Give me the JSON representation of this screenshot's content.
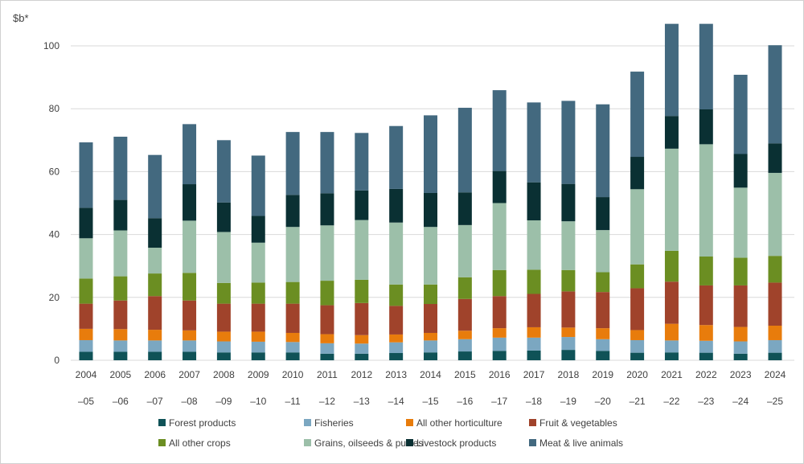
{
  "chart_data": {
    "type": "bar",
    "stacked": true,
    "ylabel": "$b*",
    "ylim": [
      0,
      110
    ],
    "yticks": [
      0,
      20,
      40,
      60,
      80,
      100
    ],
    "grid": true,
    "legend_placement": "bottom",
    "categories_line1": [
      "2004",
      "2005",
      "2006",
      "2007",
      "2008",
      "2009",
      "2010",
      "2011",
      "2012",
      "2013",
      "2014",
      "2015",
      "2016",
      "2017",
      "2018",
      "2019",
      "2020",
      "2021",
      "2022",
      "2023",
      "2024"
    ],
    "categories_line2": [
      "–05",
      "–06",
      "–07",
      "–08",
      "–09",
      "–10",
      "–11",
      "–12",
      "–13",
      "–14",
      "–15",
      "–16",
      "–17",
      "–18",
      "–19",
      "–20",
      "–21",
      "–22",
      "–23",
      "–24",
      "–25"
    ],
    "series": [
      {
        "name": "Forest products",
        "color": "#0f5257",
        "values": [
          2.7,
          2.7,
          2.7,
          2.7,
          2.5,
          2.5,
          2.5,
          2.1,
          2.1,
          2.3,
          2.5,
          2.8,
          3,
          3.1,
          3.3,
          3,
          2.4,
          2.5,
          2.4,
          2.1,
          2.4
        ]
      },
      {
        "name": "Fisheries",
        "color": "#7ba7c1",
        "values": [
          3.7,
          3.6,
          3.6,
          3.6,
          3.5,
          3.4,
          3.3,
          3.3,
          3.2,
          3.4,
          3.8,
          3.9,
          4.2,
          4.1,
          4.1,
          3.7,
          4,
          3.8,
          3.8,
          3.9,
          4
        ]
      },
      {
        "name": "All other horticulture",
        "color": "#e87c0c",
        "values": [
          3.6,
          3.6,
          3.4,
          3.2,
          3.1,
          3.2,
          2.9,
          2.9,
          2.7,
          2.5,
          2.4,
          2.7,
          3,
          3.3,
          3,
          3.5,
          3.2,
          5.3,
          5,
          4.6,
          4.6
        ]
      },
      {
        "name": "Fruit & vegetables",
        "color": "#a0432b",
        "values": [
          8,
          9.1,
          10.7,
          9.5,
          8.9,
          8.9,
          9.3,
          9.2,
          10.2,
          9.1,
          9.2,
          10.1,
          10.2,
          10.6,
          11.5,
          11.5,
          13.3,
          13.4,
          12.6,
          13.2,
          13.7
        ]
      },
      {
        "name": "All other crops",
        "color": "#6b8e22",
        "values": [
          8,
          7.7,
          7.2,
          8.8,
          6.6,
          6.7,
          6.9,
          7.8,
          7.4,
          6.8,
          6.2,
          6.9,
          8.3,
          7.7,
          6.8,
          6.3,
          7.6,
          9.8,
          9.2,
          8.8,
          8.5
        ]
      },
      {
        "name": "Grains, oilseeds & pulses",
        "color": "#9cbfa9",
        "values": [
          12.8,
          14.6,
          8.2,
          16.6,
          16.2,
          12.7,
          17.5,
          17.6,
          19,
          19.7,
          18.3,
          16.6,
          21.3,
          15.7,
          15.5,
          13.4,
          23.9,
          32.5,
          35.7,
          22.3,
          26.4
        ]
      },
      {
        "name": "Livestock products",
        "color": "#0a3033",
        "values": [
          9.7,
          9.7,
          9.4,
          11.6,
          9.4,
          8.5,
          10.2,
          10.2,
          9.4,
          10.7,
          10.8,
          10.4,
          10.2,
          12.1,
          11.9,
          10.5,
          10.3,
          10.4,
          11.1,
          10.7,
          9.4
        ]
      },
      {
        "name": "Meat & live animals",
        "color": "#43697f",
        "values": [
          20.8,
          20.1,
          20.1,
          19.1,
          19.8,
          19.2,
          20,
          19.5,
          18.3,
          20,
          24.7,
          26.9,
          25.7,
          25.4,
          26.4,
          29.5,
          27.1,
          29.3,
          27.2,
          25.2,
          31.2
        ]
      }
    ]
  }
}
